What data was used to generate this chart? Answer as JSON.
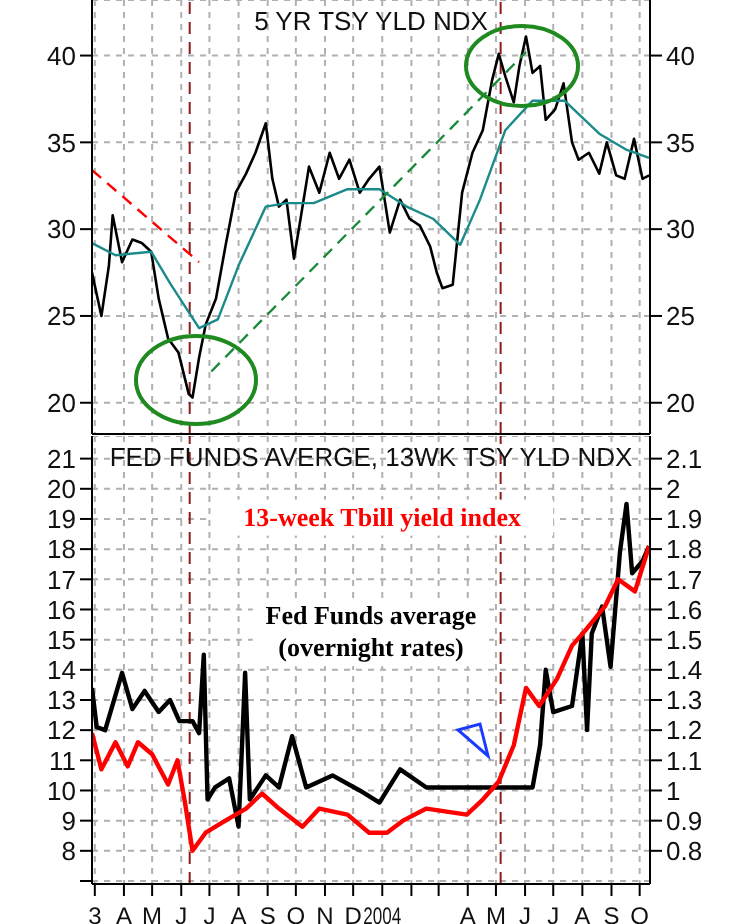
{
  "chart_data": [
    {
      "type": "line",
      "title": "5 YR TSY YLD NDX",
      "xlim": [
        "2003-02-26",
        "2004-10-12"
      ],
      "xticks": [
        {
          "value": "2003-03-01",
          "label": null
        },
        {
          "value": "2003-04-01",
          "label": null
        },
        {
          "value": "2003-05-01",
          "label": null
        },
        {
          "value": "2003-06-01",
          "label": null
        },
        {
          "value": "2003-07-01",
          "label": null
        },
        {
          "value": "2003-08-01",
          "label": null
        },
        {
          "value": "2003-09-01",
          "label": null
        },
        {
          "value": "2003-10-01",
          "label": null
        },
        {
          "value": "2003-11-01",
          "label": null
        },
        {
          "value": "2003-12-01",
          "label": null
        },
        {
          "value": "2004-01-01",
          "label": null
        },
        {
          "value": "2004-02-01",
          "label": null
        },
        {
          "value": "2004-03-01",
          "label": null
        },
        {
          "value": "2004-04-01",
          "label": null
        },
        {
          "value": "2004-05-01",
          "label": null
        },
        {
          "value": "2004-06-01",
          "label": null
        },
        {
          "value": "2004-07-01",
          "label": null
        },
        {
          "value": "2004-08-01",
          "label": null
        },
        {
          "value": "2004-09-01",
          "label": null
        },
        {
          "value": "2004-10-01",
          "label": null
        }
      ],
      "ylim": [
        18.2,
        43.2
      ],
      "yticks": [
        20,
        25,
        30,
        35,
        40
      ],
      "y2lim": [
        18.2,
        43.2
      ],
      "y2ticks": [
        20,
        25,
        30,
        35,
        40
      ],
      "tick_labels": "y",
      "grid": true,
      "ref_lines": [
        {
          "axis": "x",
          "value": "2003-06-10",
          "color": "#8b1a1a",
          "line_style": "dashed"
        },
        {
          "axis": "x",
          "value": "2004-05-06",
          "color": "#8b1a1a",
          "line_style": "dashed"
        }
      ],
      "series": [
        {
          "color": "#000000",
          "x": [
            "2003-02-26",
            "2003-03-08",
            "2003-03-16",
            "2003-03-20",
            "2003-03-30",
            "2003-04-10",
            "2003-04-20",
            "2003-04-30",
            "2003-05-08",
            "2003-05-18",
            "2003-05-29",
            "2003-06-09",
            "2003-06-13",
            "2003-06-20",
            "2003-06-27",
            "2003-07-08",
            "2003-07-18",
            "2003-07-29",
            "2003-08-09",
            "2003-08-19",
            "2003-08-30",
            "2003-09-06",
            "2003-09-13",
            "2003-09-21",
            "2003-09-29",
            "2003-10-06",
            "2003-10-15",
            "2003-10-26",
            "2003-11-06",
            "2003-11-16",
            "2003-11-27",
            "2003-12-08",
            "2003-12-18",
            "2003-12-29",
            "2004-01-09",
            "2004-01-20",
            "2004-01-30",
            "2004-02-10",
            "2004-02-21",
            "2004-02-28",
            "2004-03-05",
            "2004-03-16",
            "2004-03-26",
            "2004-04-06",
            "2004-04-17",
            "2004-04-27",
            "2004-05-04",
            "2004-05-11",
            "2004-05-20",
            "2004-05-26",
            "2004-06-02",
            "2004-06-09",
            "2004-06-17",
            "2004-06-23",
            "2004-07-03",
            "2004-07-12",
            "2004-07-21",
            "2004-07-28",
            "2004-08-08",
            "2004-08-19",
            "2004-08-27",
            "2004-09-06",
            "2004-09-15",
            "2004-09-25",
            "2004-10-04",
            "2004-10-11"
          ],
          "values": [
            27.5,
            25.0,
            27.9,
            30.8,
            28.1,
            29.4,
            29.2,
            28.7,
            26.0,
            23.7,
            22.9,
            20.5,
            20.3,
            22.6,
            24.5,
            26.0,
            29.0,
            32.1,
            33.2,
            34.4,
            36.1,
            32.9,
            31.3,
            31.7,
            28.3,
            30.6,
            33.6,
            32.1,
            34.4,
            32.9,
            34.0,
            32.1,
            32.9,
            33.6,
            29.8,
            31.7,
            30.6,
            30.2,
            29.0,
            27.5,
            26.6,
            26.8,
            32.1,
            34.4,
            35.7,
            38.6,
            40.1,
            38.8,
            37.3,
            39.4,
            41.1,
            39.0,
            39.4,
            36.3,
            36.9,
            38.4,
            35.0,
            34.0,
            34.4,
            33.2,
            35.0,
            33.1,
            32.9,
            35.2,
            32.9,
            33.1
          ]
        },
        {
          "color": "#1a8a8a",
          "x": [
            "2003-02-26",
            "2003-03-23",
            "2003-04-30",
            "2003-05-21",
            "2003-06-20",
            "2003-07-10",
            "2003-08-01",
            "2003-08-30",
            "2003-09-21",
            "2003-10-20",
            "2003-11-25",
            "2003-12-29",
            "2004-01-27",
            "2004-02-24",
            "2004-03-24",
            "2004-04-14",
            "2004-05-11",
            "2004-06-09",
            "2004-07-13",
            "2004-08-19",
            "2004-09-16",
            "2004-10-11"
          ],
          "values": [
            29.2,
            28.5,
            28.7,
            26.8,
            24.3,
            24.8,
            27.9,
            31.3,
            31.5,
            31.5,
            32.3,
            32.3,
            31.3,
            30.6,
            29.1,
            31.7,
            35.7,
            37.4,
            37.4,
            35.5,
            34.6,
            34.1
          ]
        },
        {
          "type": "line",
          "color": "#ff0000",
          "line_style": "dashed",
          "x": [
            "2003-02-26",
            "2003-06-20"
          ],
          "values": [
            33.4,
            28.1
          ]
        },
        {
          "type": "line",
          "color": "#1a8a3a",
          "line_style": "dashed",
          "x": [
            "2003-07-03",
            "2004-06-02"
          ],
          "values": [
            21.8,
            40.2
          ]
        }
      ]
    },
    {
      "type": "line",
      "title": "FED FUNDS AVERGE, 13WK TSY YLD NDX",
      "xlim": [
        "2003-02-26",
        "2004-10-12"
      ],
      "xticks": [
        {
          "value": "2003-03-01",
          "label": "3"
        },
        {
          "value": "2003-04-01",
          "label": "A"
        },
        {
          "value": "2003-05-01",
          "label": "M"
        },
        {
          "value": "2003-06-01",
          "label": "J"
        },
        {
          "value": "2003-07-01",
          "label": "J"
        },
        {
          "value": "2003-08-01",
          "label": "A"
        },
        {
          "value": "2003-09-01",
          "label": "S"
        },
        {
          "value": "2003-10-01",
          "label": "O"
        },
        {
          "value": "2003-11-01",
          "label": "N"
        },
        {
          "value": "2003-12-01",
          "label": "D"
        },
        {
          "value": "2004-01-01",
          "label": "2004"
        },
        {
          "value": "2004-02-01",
          "label": null
        },
        {
          "value": "2004-03-01",
          "label": null
        },
        {
          "value": "2004-04-01",
          "label": "A"
        },
        {
          "value": "2004-05-01",
          "label": "M"
        },
        {
          "value": "2004-06-01",
          "label": "J"
        },
        {
          "value": "2004-07-01",
          "label": "J"
        },
        {
          "value": "2004-08-01",
          "label": "A"
        },
        {
          "value": "2004-09-01",
          "label": "S"
        },
        {
          "value": "2004-10-01",
          "label": "O"
        }
      ],
      "ylim": [
        6.9,
        21.75
      ],
      "yticks": [
        {
          "value": 7,
          "label": null
        },
        8,
        9,
        10,
        11,
        12,
        13,
        14,
        15,
        16,
        17,
        18,
        19,
        20,
        21
      ],
      "y2lim": [
        0.69,
        2.175
      ],
      "y2ticks": [
        0.8,
        0.9,
        1.0,
        1.1,
        1.2,
        1.3,
        1.4,
        1.5,
        1.6,
        1.7,
        1.8,
        1.9,
        2.0,
        2.1
      ],
      "grid": true,
      "ref_lines": [
        {
          "axis": "x",
          "value": "2003-06-10",
          "color": "#8b1a1a",
          "line_style": "dashed"
        },
        {
          "axis": "x",
          "value": "2004-05-06",
          "color": "#8b1a1a",
          "line_style": "dashed"
        }
      ],
      "series": [
        {
          "name": "Fed Funds average\n(overnight rates)",
          "color": "#000000",
          "x": [
            "2003-02-26",
            "2003-03-03",
            "2003-03-12",
            "2003-03-30",
            "2003-04-10",
            "2003-04-23",
            "2003-05-08",
            "2003-05-20",
            "2003-05-30",
            "2003-06-13",
            "2003-06-20",
            "2003-06-25",
            "2003-06-29",
            "2003-07-07",
            "2003-07-22",
            "2003-08-01",
            "2003-08-08",
            "2003-08-13",
            "2003-08-30",
            "2003-09-13",
            "2003-09-27",
            "2003-10-12",
            "2003-11-09",
            "2003-12-08",
            "2003-12-29",
            "2004-01-20",
            "2004-02-17",
            "2004-03-31",
            "2004-05-04",
            "2004-06-09",
            "2004-06-17",
            "2004-06-23",
            "2004-07-01",
            "2004-07-21",
            "2004-08-01",
            "2004-08-06",
            "2004-08-11",
            "2004-08-22",
            "2004-08-31",
            "2004-09-10",
            "2004-09-17",
            "2004-09-23",
            "2004-10-04",
            "2004-10-11"
          ],
          "values": [
            13.4,
            12.1,
            12.0,
            13.9,
            12.7,
            13.3,
            12.6,
            13.0,
            12.3,
            12.3,
            11.9,
            14.5,
            9.7,
            10.1,
            10.4,
            8.8,
            13.9,
            9.7,
            10.5,
            10.1,
            11.8,
            10.1,
            10.5,
            10.0,
            9.6,
            10.7,
            10.1,
            10.1,
            10.1,
            10.1,
            11.5,
            14.0,
            12.6,
            12.8,
            15.2,
            12.0,
            15.2,
            16.1,
            14.1,
            17.9,
            19.5,
            17.2,
            17.6,
            18.1
          ]
        },
        {
          "name": "13-week Tbill yield index",
          "color": "#ff0000",
          "axis": "y2",
          "x": [
            "2003-02-26",
            "2003-03-08",
            "2003-03-23",
            "2003-04-05",
            "2003-04-16",
            "2003-05-01",
            "2003-05-18",
            "2003-05-28",
            "2003-06-05",
            "2003-06-13",
            "2003-06-27",
            "2003-07-18",
            "2003-08-09",
            "2003-08-26",
            "2003-09-13",
            "2003-10-08",
            "2003-10-26",
            "2003-11-25",
            "2003-12-18",
            "2004-01-06",
            "2004-01-23",
            "2004-02-17",
            "2004-03-31",
            "2004-04-17",
            "2004-05-04",
            "2004-05-20",
            "2004-06-02",
            "2004-06-16",
            "2004-07-05",
            "2004-07-21",
            "2004-08-04",
            "2004-08-25",
            "2004-09-08",
            "2004-09-26",
            "2004-10-11"
          ],
          "values": [
            1.19,
            1.07,
            1.16,
            1.08,
            1.16,
            1.12,
            1.02,
            1.1,
            0.96,
            0.8,
            0.86,
            0.9,
            0.94,
            0.99,
            0.94,
            0.88,
            0.94,
            0.92,
            0.86,
            0.86,
            0.9,
            0.94,
            0.92,
            0.97,
            1.03,
            1.15,
            1.34,
            1.28,
            1.37,
            1.48,
            1.53,
            1.61,
            1.7,
            1.66,
            1.81
          ]
        }
      ]
    }
  ]
}
